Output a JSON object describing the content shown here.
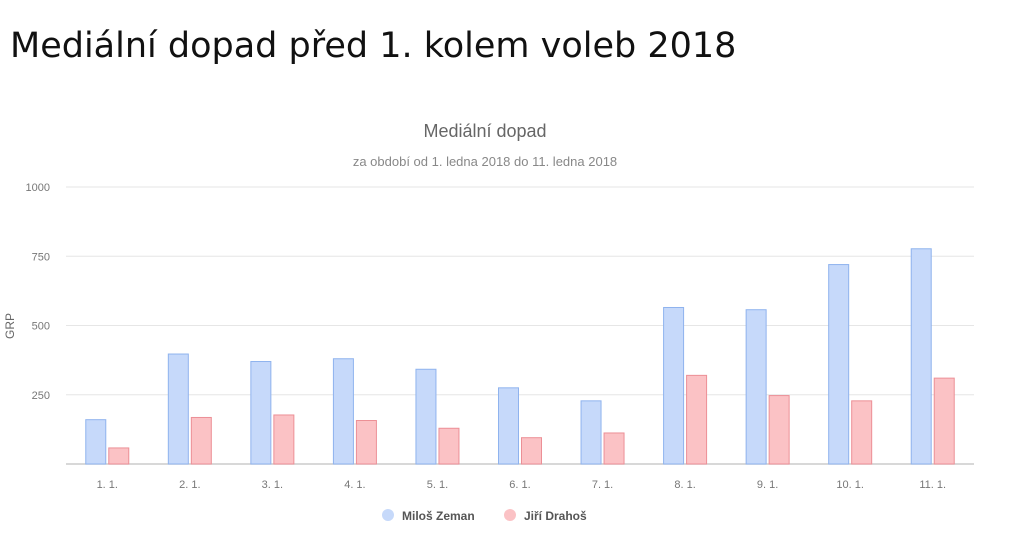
{
  "slide": {
    "title": "Mediální dopad před 1. kolem voleb 2018"
  },
  "colors": {
    "series_1_fill": "#c6d9fa",
    "series_1_stroke": "#8fb3ee",
    "series_2_fill": "#fbc2c5",
    "series_2_stroke": "#ec8f96",
    "grid": "#e6e6e6",
    "axis": "#cccccc",
    "text_title": "#666666",
    "text_muted": "#777777"
  },
  "chart_data": {
    "type": "bar",
    "title": "Mediální dopad",
    "subtitle": "za období od 1. ledna 2018 do 11. ledna 2018",
    "xlabel": "",
    "ylabel": "GRP",
    "ylim": [
      0,
      1000
    ],
    "yticks": [
      250,
      500,
      750,
      1000
    ],
    "grid": true,
    "legend_position": "bottom",
    "categories": [
      "1. 1.",
      "2. 1.",
      "3. 1.",
      "4. 1.",
      "5. 1.",
      "6. 1.",
      "7. 1.",
      "8. 1.",
      "9. 1.",
      "10. 1.",
      "11. 1."
    ],
    "series": [
      {
        "name": "Miloš Zeman",
        "values": [
          160,
          397,
          370,
          380,
          342,
          275,
          228,
          565,
          557,
          720,
          777
        ]
      },
      {
        "name": "Jiří Drahoš",
        "values": [
          58,
          168,
          177,
          157,
          129,
          95,
          112,
          320,
          247,
          228,
          310
        ]
      }
    ]
  }
}
